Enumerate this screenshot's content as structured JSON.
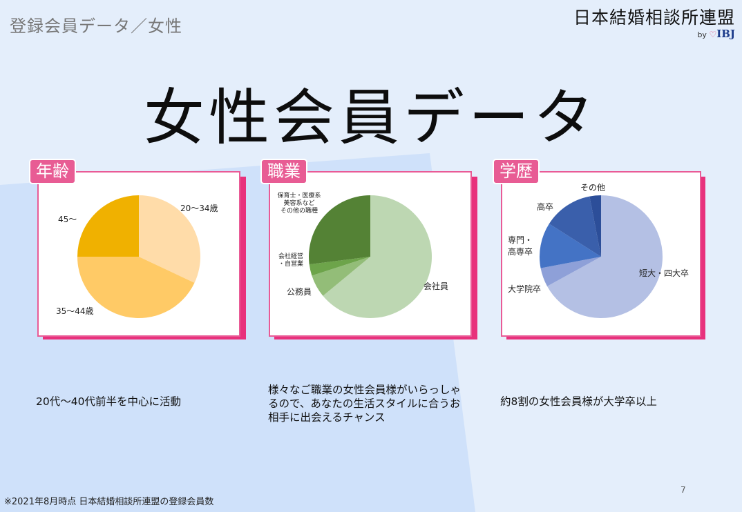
{
  "breadcrumb": "登録会員データ／女性",
  "brand": {
    "name": "日本結婚相談所連盟",
    "by": "by",
    "logo": "IBJ"
  },
  "page_title": "女性会員データ",
  "colors": {
    "tag_bg": "#e85c94",
    "panel_border": "#e95b96",
    "shadow": "#e8317c"
  },
  "chart_data": [
    {
      "type": "pie",
      "tag": "年齢",
      "slices": [
        {
          "label": "20〜34歳",
          "value": 32,
          "color": "#ffdca9"
        },
        {
          "label": "35〜44歳",
          "value": 43,
          "color": "#ffca66"
        },
        {
          "label": "45〜",
          "value": 25,
          "color": "#f0b100"
        }
      ],
      "caption": [
        "20代〜40代前半を中心に活動"
      ]
    },
    {
      "type": "pie",
      "tag": "職業",
      "slices": [
        {
          "label": "会社員",
          "value": 64,
          "color": "#bdd7b2"
        },
        {
          "label": "公務員",
          "value": 6,
          "color": "#93bd78"
        },
        {
          "label": "会社経営・自営業",
          "value": 3,
          "color": "#6da44a"
        },
        {
          "label": "保育士・医療系美容系などその他の職種",
          "value": 27,
          "color": "#548235"
        }
      ],
      "label_lines": {
        "会社員": [
          "会社員"
        ],
        "公務員": [
          "公務員"
        ],
        "会社経営・自営業": [
          "会社経営",
          "・自営業"
        ],
        "保育士・医療系美容系などその他の職種": [
          "保育士・医療系",
          "美容系など",
          "その他の職種"
        ]
      },
      "caption": [
        "様々なご職業の女性会員様がいらっしゃ",
        "るので、あなたの生活スタイルに合うお",
        "相手に出会えるチャンス"
      ]
    },
    {
      "type": "pie",
      "tag": "学歴",
      "slices": [
        {
          "label": "短大・四大卒",
          "value": 67,
          "color": "#b4c0e4"
        },
        {
          "label": "大学院卒",
          "value": 5,
          "color": "#8ea0d8"
        },
        {
          "label": "専門・高専卒",
          "value": 12,
          "color": "#4473c5"
        },
        {
          "label": "高卒",
          "value": 13,
          "color": "#3a5fab"
        },
        {
          "label": "その他",
          "value": 3,
          "color": "#2c4e99"
        }
      ],
      "label_lines": {
        "短大・四大卒": [
          "短大・四大卒"
        ],
        "大学院卒": [
          "大学院卒"
        ],
        "専門・高専卒": [
          "専門・",
          "高専卒"
        ],
        "高卒": [
          "高卒"
        ],
        "その他": [
          "その他"
        ]
      },
      "caption": [
        "約8割の女性会員様が大学卒以上"
      ]
    }
  ],
  "footnote": "※2021年8月時点 日本結婚相談所連盟の登録会員数",
  "page_number": "7"
}
